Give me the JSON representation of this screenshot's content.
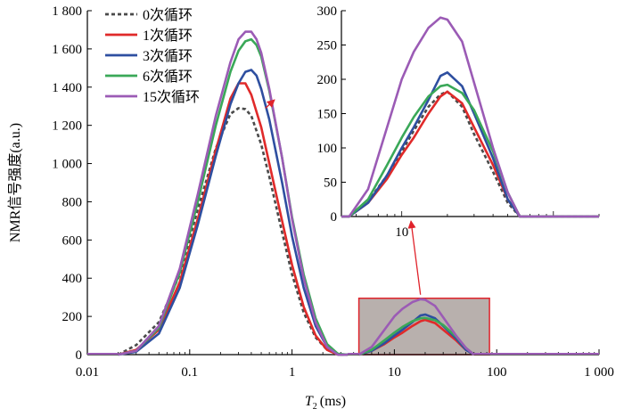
{
  "chart_data": [
    {
      "type": "line",
      "xscale": "log",
      "xlim": [
        0.01,
        1000
      ],
      "ylim": [
        0,
        1800
      ],
      "xlabel_italic": "T",
      "xlabel_sub": "2",
      "xlabel_unit": "(ms)",
      "ylabel": "NMR信号强度(a.u.)",
      "xticks": [
        0.01,
        0.1,
        1,
        10,
        100,
        1000
      ],
      "xtick_labels": [
        "0.01",
        "0.1",
        "1",
        "10",
        "100",
        "1 000"
      ],
      "yticks": [
        0,
        200,
        400,
        600,
        800,
        1000,
        1200,
        1400,
        1600,
        1800
      ],
      "ytick_labels": [
        "0",
        "200",
        "400",
        "600",
        "800",
        "1 000",
        "1 200",
        "1 400",
        "1 600",
        "1 800"
      ],
      "legend_position": "top-left",
      "series": [
        {
          "name": "0次循环",
          "color": "#4a4a4a",
          "dashed": true,
          "x": [
            0.02,
            0.03,
            0.05,
            0.08,
            0.12,
            0.18,
            0.25,
            0.3,
            0.35,
            0.4,
            0.5,
            0.6,
            0.8,
            1.0,
            1.3,
            1.7,
            2.2,
            2.8,
            3.5
          ],
          "y": [
            0,
            50,
            170,
            420,
            760,
            1080,
            1260,
            1290,
            1285,
            1250,
            1100,
            930,
            640,
            420,
            220,
            90,
            25,
            0,
            0
          ]
        },
        {
          "name": "1次循环",
          "color": "#e02a2a",
          "dashed": false,
          "x": [
            0.02,
            0.03,
            0.05,
            0.08,
            0.12,
            0.18,
            0.25,
            0.3,
            0.35,
            0.4,
            0.5,
            0.6,
            0.8,
            1.0,
            1.3,
            1.7,
            2.2,
            2.8,
            3.5
          ],
          "y": [
            0,
            25,
            130,
            380,
            710,
            1070,
            1340,
            1420,
            1420,
            1360,
            1190,
            1000,
            700,
            470,
            250,
            100,
            25,
            0,
            0
          ],
          "x2": [
            4.5,
            6,
            8,
            10,
            12,
            15,
            18,
            20,
            25,
            30,
            40,
            50,
            60
          ],
          "y2": [
            0,
            20,
            55,
            90,
            115,
            150,
            175,
            182,
            165,
            130,
            75,
            25,
            0
          ]
        },
        {
          "name": "3次循环",
          "color": "#2e4fa0",
          "dashed": false,
          "x": [
            0.02,
            0.03,
            0.05,
            0.08,
            0.12,
            0.18,
            0.25,
            0.3,
            0.35,
            0.4,
            0.45,
            0.5,
            0.6,
            0.8,
            1.0,
            1.3,
            1.7,
            2.2,
            2.8,
            3.5
          ],
          "y": [
            0,
            15,
            110,
            350,
            680,
            1040,
            1310,
            1420,
            1480,
            1490,
            1460,
            1390,
            1230,
            900,
            620,
            350,
            150,
            40,
            0,
            0
          ],
          "x2": [
            4.5,
            6,
            8,
            10,
            12,
            15,
            18,
            20,
            25,
            30,
            40,
            50,
            60
          ],
          "y2": [
            0,
            20,
            60,
            100,
            130,
            170,
            205,
            210,
            190,
            150,
            85,
            25,
            0
          ]
        },
        {
          "name": "6次循环",
          "color": "#3aa858",
          "dashed": false,
          "x": [
            0.02,
            0.03,
            0.05,
            0.08,
            0.12,
            0.18,
            0.25,
            0.3,
            0.35,
            0.4,
            0.45,
            0.5,
            0.6,
            0.8,
            1.0,
            1.3,
            1.7,
            2.2,
            2.8,
            3.5
          ],
          "y": [
            0,
            20,
            140,
            430,
            800,
            1200,
            1480,
            1590,
            1640,
            1650,
            1620,
            1560,
            1380,
            1030,
            720,
            420,
            190,
            55,
            5,
            0
          ],
          "x2": [
            4.5,
            6,
            8,
            10,
            12,
            15,
            18,
            20,
            25,
            30,
            40,
            50,
            60
          ],
          "y2": [
            0,
            25,
            75,
            115,
            145,
            175,
            190,
            192,
            180,
            155,
            95,
            35,
            0
          ]
        },
        {
          "name": "15次循环",
          "color": "#9b5bb5",
          "dashed": false,
          "x": [
            0.02,
            0.03,
            0.05,
            0.08,
            0.12,
            0.18,
            0.25,
            0.3,
            0.35,
            0.4,
            0.45,
            0.5,
            0.6,
            0.8,
            1.0,
            1.3,
            1.7,
            2.2,
            2.8,
            3.5
          ],
          "y": [
            0,
            20,
            150,
            450,
            840,
            1250,
            1530,
            1650,
            1690,
            1690,
            1650,
            1580,
            1390,
            1030,
            710,
            400,
            170,
            40,
            0,
            0
          ],
          "x2": [
            4.5,
            6,
            8,
            10,
            12,
            15,
            18,
            20,
            25,
            30,
            40,
            50,
            60
          ],
          "y2": [
            0,
            40,
            130,
            200,
            240,
            275,
            290,
            287,
            255,
            195,
            100,
            35,
            0
          ]
        }
      ]
    },
    {
      "type": "line",
      "role": "inset",
      "xscale": "log",
      "xlim": [
        4,
        200
      ],
      "ylim": [
        0,
        300
      ],
      "xticks": [
        10
      ],
      "xtick_labels": [
        "10"
      ],
      "yticks": [
        0,
        50,
        100,
        150,
        200,
        250,
        300
      ],
      "ytick_labels": [
        "0",
        "50",
        "100",
        "150",
        "200",
        "250",
        "300"
      ],
      "highlight_box": {
        "xlim": [
          4.5,
          85
        ],
        "ylim": [
          0,
          295
        ]
      }
    }
  ]
}
